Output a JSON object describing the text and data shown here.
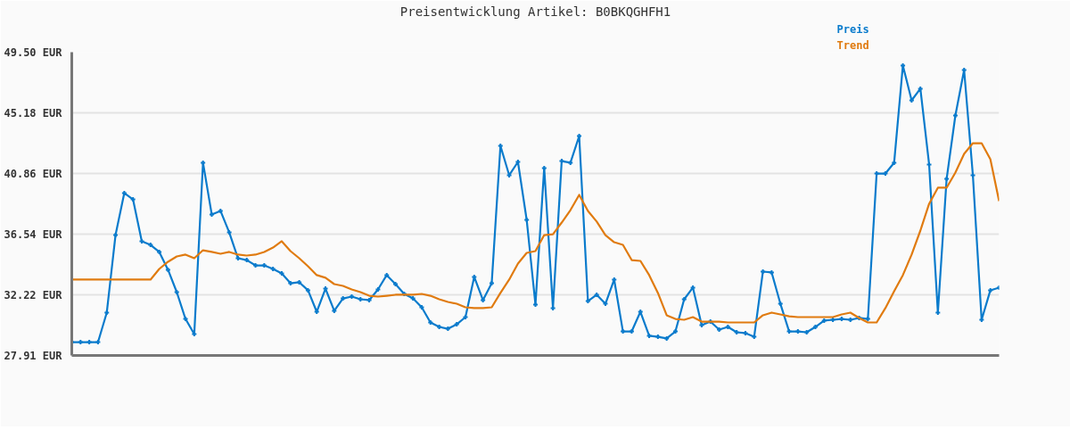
{
  "chart_data": {
    "type": "line",
    "title": "Preisentwicklung Artikel: B0BKQGHFH1",
    "categories": [
      null,
      null,
      null,
      null,
      null,
      null,
      null,
      null,
      null,
      null,
      null,
      null,
      null,
      null,
      null,
      null,
      null,
      null,
      null,
      null,
      null,
      null,
      null,
      null,
      null,
      null,
      null,
      null,
      null,
      null,
      null,
      null,
      null,
      null,
      null,
      null,
      null,
      null,
      null,
      null,
      null,
      null,
      null,
      null,
      null,
      null,
      null,
      null,
      null,
      null,
      null,
      null,
      null,
      null,
      null,
      null,
      null,
      null,
      null,
      null,
      null,
      null,
      null,
      null,
      null,
      null,
      null,
      null,
      null,
      null,
      null,
      null,
      null,
      null,
      null,
      null,
      null,
      null,
      null,
      null,
      null,
      null,
      null,
      null,
      null,
      null,
      null,
      null,
      null,
      null,
      null,
      null,
      null,
      null,
      null,
      null,
      null,
      null,
      null,
      null,
      null,
      null,
      null,
      null,
      null,
      null,
      null
    ],
    "ylim": [
      27.91,
      49.5
    ],
    "yticks": [
      {
        "value": 27.91,
        "label": "27.91 EUR"
      },
      {
        "value": 32.22,
        "label": "32.22 EUR"
      },
      {
        "value": 36.54,
        "label": "36.54 EUR"
      },
      {
        "value": 40.86,
        "label": "40.86 EUR"
      },
      {
        "value": 45.18,
        "label": "45.18 EUR"
      },
      {
        "value": 49.5,
        "label": "49.50 EUR"
      }
    ],
    "tick_labels": "y",
    "grid": "y",
    "line_style": "solid",
    "series": [
      {
        "name": "Preis",
        "color": "#0a7bcc",
        "marker": "cross",
        "values": [
          28.86,
          28.86,
          28.86,
          28.86,
          30.96,
          36.48,
          39.47,
          39.02,
          36.04,
          35.78,
          35.28,
          34.01,
          32.42,
          30.51,
          29.43,
          41.63,
          37.94,
          38.2,
          36.67,
          34.83,
          34.7,
          34.32,
          34.32,
          34.07,
          33.75,
          33.05,
          33.12,
          32.55,
          31.02,
          32.67,
          31.09,
          31.97,
          32.1,
          31.91,
          31.85,
          32.61,
          33.63,
          32.99,
          32.29,
          31.97,
          31.34,
          30.26,
          29.94,
          29.81,
          30.13,
          30.64,
          33.5,
          31.85,
          33.05,
          42.83,
          40.74,
          41.69,
          37.56,
          31.53,
          41.25,
          31.28,
          41.75,
          41.63,
          43.53,
          31.78,
          32.23,
          31.59,
          33.31,
          29.62,
          29.62,
          31.02,
          29.31,
          29.24,
          29.12,
          29.62,
          31.91,
          32.74,
          30.07,
          30.32,
          29.75,
          29.94,
          29.56,
          29.5,
          29.24,
          33.88,
          33.82,
          31.59,
          29.62,
          29.62,
          29.56,
          29.94,
          30.39,
          30.45,
          30.51,
          30.45,
          30.58,
          30.51,
          40.86,
          40.86,
          41.63,
          48.55,
          46.07,
          46.9,
          41.5,
          30.96,
          40.48,
          44.99,
          48.23,
          40.74,
          30.45,
          32.55,
          32.74
        ]
      },
      {
        "name": "Trend",
        "color": "#e07b10",
        "marker": "none",
        "values": [
          33.31,
          33.31,
          33.31,
          33.31,
          33.31,
          33.31,
          33.31,
          33.31,
          33.31,
          33.31,
          34.07,
          34.58,
          34.96,
          35.09,
          34.83,
          35.4,
          35.28,
          35.15,
          35.28,
          35.09,
          35.02,
          35.09,
          35.28,
          35.59,
          36.04,
          35.34,
          34.83,
          34.26,
          33.63,
          33.44,
          32.99,
          32.86,
          32.61,
          32.42,
          32.16,
          32.1,
          32.16,
          32.23,
          32.23,
          32.23,
          32.29,
          32.16,
          31.91,
          31.72,
          31.59,
          31.34,
          31.28,
          31.28,
          31.34,
          32.36,
          33.31,
          34.45,
          35.21,
          35.34,
          36.48,
          36.54,
          37.37,
          38.26,
          39.34,
          38.2,
          37.44,
          36.48,
          35.97,
          35.78,
          34.7,
          34.64,
          33.63,
          32.36,
          30.77,
          30.51,
          30.45,
          30.64,
          30.32,
          30.32,
          30.32,
          30.26,
          30.26,
          30.26,
          30.26,
          30.77,
          30.96,
          30.83,
          30.7,
          30.64,
          30.64,
          30.64,
          30.64,
          30.64,
          30.83,
          30.96,
          30.58,
          30.26,
          30.26,
          31.28,
          32.48,
          33.63,
          35.09,
          36.8,
          38.71,
          39.85,
          39.85,
          40.93,
          42.26,
          43.02,
          43.02,
          41.88,
          38.9
        ]
      }
    ]
  }
}
